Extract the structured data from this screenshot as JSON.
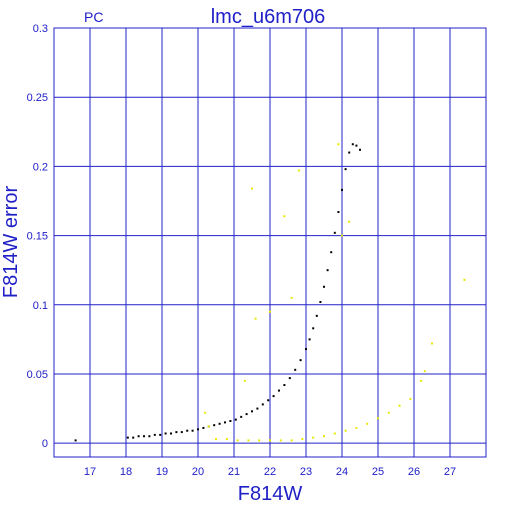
{
  "chart_data": {
    "type": "scatter",
    "title": "lmc_u6m706",
    "corner_label": "PC",
    "xlabel": "F814W",
    "ylabel": "F814W error",
    "xlim": [
      16.0,
      28.0
    ],
    "ylim": [
      -0.01,
      0.3
    ],
    "x_ticks": [
      17,
      18,
      19,
      20,
      21,
      22,
      23,
      24,
      25,
      26,
      27
    ],
    "y_ticks": [
      0,
      0.05,
      0.1,
      0.15,
      0.2,
      0.25,
      0.3
    ],
    "y_tick_labels": [
      "0",
      "0.05",
      "0.1",
      "0.15",
      "0.2",
      "0.25",
      "0.3"
    ],
    "grid": true,
    "colors": {
      "axis": "#2020c8",
      "grid": "#2020c8",
      "series_main": "#000000",
      "series_flagged": "#e8e800"
    },
    "series": [
      {
        "color": "#000000",
        "points": [
          [
            16.6,
            0.002
          ],
          [
            18.05,
            0.004
          ],
          [
            18.2,
            0.004
          ],
          [
            18.35,
            0.005
          ],
          [
            18.5,
            0.005
          ],
          [
            18.65,
            0.005
          ],
          [
            18.8,
            0.006
          ],
          [
            18.95,
            0.006
          ],
          [
            19.1,
            0.007
          ],
          [
            19.25,
            0.007
          ],
          [
            19.4,
            0.008
          ],
          [
            19.55,
            0.008
          ],
          [
            19.7,
            0.009
          ],
          [
            19.85,
            0.009
          ],
          [
            20.0,
            0.01
          ],
          [
            20.15,
            0.011
          ],
          [
            20.3,
            0.012
          ],
          [
            20.45,
            0.013
          ],
          [
            20.6,
            0.014
          ],
          [
            20.75,
            0.015
          ],
          [
            20.9,
            0.016
          ],
          [
            21.05,
            0.017
          ],
          [
            21.2,
            0.019
          ],
          [
            21.35,
            0.021
          ],
          [
            21.5,
            0.023
          ],
          [
            21.65,
            0.025
          ],
          [
            21.8,
            0.028
          ],
          [
            21.95,
            0.031
          ],
          [
            22.1,
            0.034
          ],
          [
            22.25,
            0.038
          ],
          [
            22.4,
            0.042
          ],
          [
            22.55,
            0.047
          ],
          [
            22.7,
            0.053
          ],
          [
            22.85,
            0.06
          ],
          [
            23.0,
            0.068
          ],
          [
            23.1,
            0.075
          ],
          [
            23.2,
            0.083
          ],
          [
            23.3,
            0.092
          ],
          [
            23.4,
            0.102
          ],
          [
            23.5,
            0.113
          ],
          [
            23.6,
            0.125
          ],
          [
            23.7,
            0.138
          ],
          [
            23.8,
            0.152
          ],
          [
            23.9,
            0.167
          ],
          [
            24.0,
            0.183
          ],
          [
            24.1,
            0.198
          ],
          [
            24.2,
            0.21
          ],
          [
            24.3,
            0.216
          ],
          [
            24.4,
            0.215
          ],
          [
            24.5,
            0.212
          ]
        ]
      },
      {
        "color": "#e8e800",
        "points": [
          [
            20.2,
            0.022
          ],
          [
            20.3,
            0.012
          ],
          [
            20.5,
            0.003
          ],
          [
            20.8,
            0.003
          ],
          [
            21.1,
            0.002
          ],
          [
            21.4,
            0.002
          ],
          [
            21.7,
            0.002
          ],
          [
            22.0,
            0.002
          ],
          [
            22.3,
            0.002
          ],
          [
            22.6,
            0.002
          ],
          [
            22.9,
            0.003
          ],
          [
            23.2,
            0.004
          ],
          [
            23.5,
            0.005
          ],
          [
            23.8,
            0.007
          ],
          [
            24.1,
            0.009
          ],
          [
            24.4,
            0.011
          ],
          [
            24.7,
            0.014
          ],
          [
            25.0,
            0.018
          ],
          [
            25.3,
            0.022
          ],
          [
            25.6,
            0.027
          ],
          [
            25.9,
            0.032
          ],
          [
            26.2,
            0.045
          ],
          [
            26.3,
            0.052
          ],
          [
            26.5,
            0.072
          ],
          [
            27.4,
            0.118
          ],
          [
            21.5,
            0.184
          ],
          [
            21.6,
            0.09
          ],
          [
            22.0,
            0.095
          ],
          [
            22.8,
            0.197
          ],
          [
            22.4,
            0.164
          ],
          [
            22.6,
            0.105
          ],
          [
            21.3,
            0.045
          ],
          [
            23.9,
            0.216
          ],
          [
            24.0,
            0.15
          ],
          [
            24.2,
            0.16
          ]
        ]
      }
    ]
  }
}
